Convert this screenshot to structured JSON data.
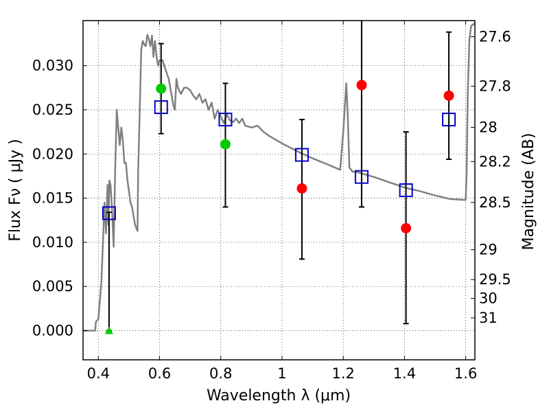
{
  "chart_data": {
    "type": "scatter",
    "xlabel": "Wavelength  λ (μm)",
    "ylabel": "Flux  Fν  ( μJy )",
    "ylabel_right": "Magnitude (AB)",
    "xlim": [
      0.35,
      1.63
    ],
    "ylim": [
      -0.0033,
      0.0351
    ],
    "grid": true,
    "x_ticks": [
      0.4,
      0.6,
      0.8,
      1.0,
      1.2,
      1.4,
      1.6
    ],
    "x_tick_labels": [
      "0.4",
      "0.6",
      "0.8",
      "1",
      "1.2",
      "1.4",
      "1.6"
    ],
    "y_ticks": [
      0.0,
      0.005,
      0.01,
      0.015,
      0.02,
      0.025,
      0.03
    ],
    "y_tick_labels": [
      "0.000",
      "0.005",
      "0.010",
      "0.015",
      "0.020",
      "0.025",
      "0.030"
    ],
    "right_ticks": [
      {
        "label": "27.6",
        "flux": 0.03328
      },
      {
        "label": "27.8",
        "flux": 0.02768
      },
      {
        "label": "28",
        "flux": 0.02302
      },
      {
        "label": "28.2",
        "flux": 0.01914
      },
      {
        "label": "28.5",
        "flux": 0.01452
      },
      {
        "label": "29",
        "flux": 0.00916
      },
      {
        "label": "29.5",
        "flux": 0.00578
      },
      {
        "label": "30",
        "flux": 0.00365
      },
      {
        "label": "31",
        "flux": 0.00145
      }
    ],
    "series": [
      {
        "kind": "line",
        "color": "#808080",
        "x": [
          0.35,
          0.39,
          0.392,
          0.4,
          0.41,
          0.415,
          0.42,
          0.425,
          0.43,
          0.433,
          0.436,
          0.44,
          0.445,
          0.45,
          0.455,
          0.46,
          0.465,
          0.47,
          0.475,
          0.48,
          0.485,
          0.49,
          0.495,
          0.5,
          0.505,
          0.51,
          0.515,
          0.52,
          0.525,
          0.528,
          0.53,
          0.535,
          0.54,
          0.545,
          0.55,
          0.555,
          0.56,
          0.565,
          0.57,
          0.575,
          0.58,
          0.585,
          0.59,
          0.595,
          0.6,
          0.61,
          0.62,
          0.63,
          0.64,
          0.645,
          0.65,
          0.655,
          0.66,
          0.67,
          0.68,
          0.69,
          0.7,
          0.71,
          0.72,
          0.73,
          0.74,
          0.75,
          0.76,
          0.77,
          0.78,
          0.79,
          0.8,
          0.81,
          0.82,
          0.83,
          0.84,
          0.85,
          0.86,
          0.87,
          0.88,
          0.9,
          0.92,
          0.94,
          0.96,
          1.0,
          1.05,
          1.1,
          1.15,
          1.19,
          1.2,
          1.21,
          1.215,
          1.22,
          1.23,
          1.24,
          1.3,
          1.35,
          1.4,
          1.45,
          1.5,
          1.55,
          1.6,
          1.603,
          1.607,
          1.612,
          1.618,
          1.63
        ],
        "y": [
          0.0,
          0.0,
          0.001,
          0.0013,
          0.0055,
          0.01,
          0.0145,
          0.011,
          0.0165,
          0.012,
          0.017,
          0.0165,
          0.0135,
          0.0095,
          0.018,
          0.025,
          0.023,
          0.021,
          0.023,
          0.0215,
          0.019,
          0.019,
          0.017,
          0.0158,
          0.0145,
          0.014,
          0.013,
          0.012,
          0.0115,
          0.0113,
          0.018,
          0.0245,
          0.0318,
          0.0328,
          0.0324,
          0.0322,
          0.0335,
          0.033,
          0.0322,
          0.0334,
          0.031,
          0.0328,
          0.031,
          0.03,
          0.0306,
          0.0306,
          0.0295,
          0.0285,
          0.0265,
          0.0255,
          0.025,
          0.0285,
          0.0275,
          0.0268,
          0.0275,
          0.0275,
          0.0272,
          0.0266,
          0.0262,
          0.0268,
          0.0258,
          0.0262,
          0.025,
          0.0258,
          0.024,
          0.025,
          0.0242,
          0.0235,
          0.0245,
          0.0238,
          0.0236,
          0.024,
          0.0235,
          0.024,
          0.0232,
          0.023,
          0.0232,
          0.0225,
          0.022,
          0.0212,
          0.0203,
          0.0195,
          0.0188,
          0.0182,
          0.0225,
          0.028,
          0.024,
          0.0185,
          0.018,
          0.018,
          0.0174,
          0.0168,
          0.0162,
          0.0158,
          0.0153,
          0.0149,
          0.0148,
          0.018,
          0.027,
          0.033,
          0.0345,
          0.0348
        ]
      },
      {
        "kind": "open-square",
        "color": "#0000cc",
        "x": [
          0.435,
          0.605,
          0.815,
          1.065,
          1.26,
          1.405,
          1.545
        ],
        "y": [
          0.0133,
          0.0253,
          0.0239,
          0.0199,
          0.0174,
          0.0159,
          0.0239
        ]
      },
      {
        "kind": "filled-circle",
        "color": "#00cc00",
        "x": [
          0.605,
          0.815
        ],
        "y": [
          0.0274,
          0.0211
        ]
      },
      {
        "kind": "filled-circle",
        "color": "#ff0000",
        "x": [
          1.065,
          1.26,
          1.405,
          1.545
        ],
        "y": [
          0.0161,
          0.0278,
          0.0116,
          0.0266
        ]
      },
      {
        "kind": "triangle",
        "color": "#00cc00",
        "x": [
          0.435
        ],
        "y": [
          0.0
        ]
      }
    ],
    "error_bars": [
      {
        "x": 0.435,
        "y_low": 0.0,
        "y_high": 0.0134
      },
      {
        "x": 0.605,
        "y_low": 0.0223,
        "y_high": 0.0325
      },
      {
        "x": 0.815,
        "y_low": 0.014,
        "y_high": 0.028
      },
      {
        "x": 1.065,
        "y_low": 0.0081,
        "y_high": 0.0239
      },
      {
        "x": 1.26,
        "y_low": 0.014,
        "y_high": 0.0352
      },
      {
        "x": 1.405,
        "y_low": 0.0008,
        "y_high": 0.0225
      },
      {
        "x": 1.545,
        "y_low": 0.0194,
        "y_high": 0.0338
      }
    ]
  }
}
